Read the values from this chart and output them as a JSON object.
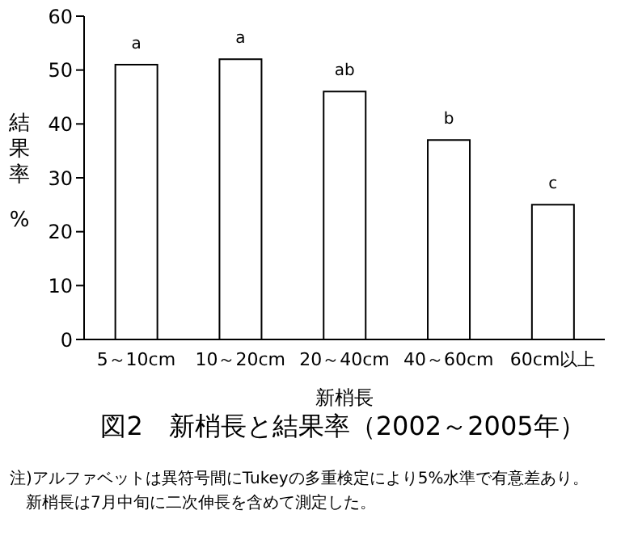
{
  "chart_data": {
    "type": "bar",
    "title": "図2　新梢長と結果率（2002～2005年）",
    "xlabel": "新梢長",
    "ylabel": "結果率%",
    "categories": [
      "5～10cm",
      "10～20cm",
      "20～40cm",
      "40～60cm",
      "60cm以上"
    ],
    "values": [
      51,
      52,
      46,
      37,
      25
    ],
    "value_labels": [
      "a",
      "a",
      "ab",
      "b",
      "c"
    ],
    "color": "#ffffff",
    "ylim": [
      0,
      60
    ],
    "yticks": [
      0,
      10,
      20,
      30,
      40,
      50,
      60
    ],
    "grid": false,
    "annotations": [
      "注)アルファベットは異符号間にTukeyの多重検定により5%水準で有意差あり。",
      "　新梢長は7月中旬に二次伸長を含めて測定した。"
    ]
  }
}
